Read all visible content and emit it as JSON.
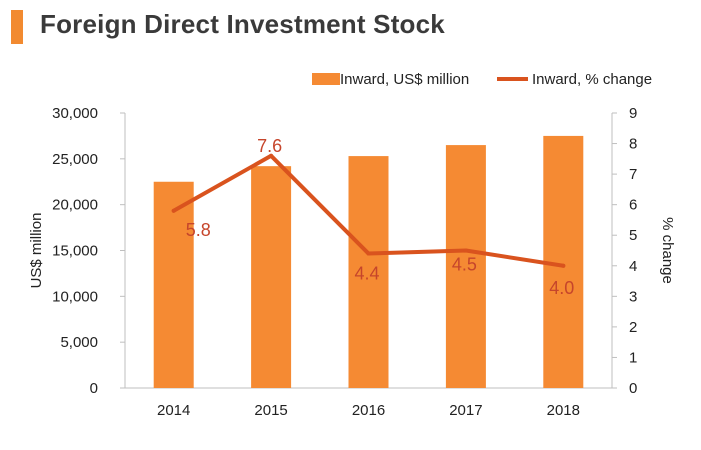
{
  "title": "Foreign Direct Investment Stock",
  "colors": {
    "accent": "#f28a30",
    "bar": "#f58a33",
    "line": "#d9531e",
    "label": "#c6452b",
    "axis": "#bfbfbf"
  },
  "chart_data": {
    "type": "bar",
    "categories": [
      "2014",
      "2015",
      "2016",
      "2017",
      "2018"
    ],
    "series": [
      {
        "name": "Inward, US$ million",
        "type": "bar",
        "axis": "left",
        "values": [
          22500,
          24200,
          25300,
          26500,
          27500
        ]
      },
      {
        "name": "Inward, % change",
        "type": "line",
        "axis": "right",
        "values": [
          5.8,
          7.6,
          4.4,
          4.5,
          4.0
        ],
        "labels": [
          "5.8",
          "7.6",
          "4.4",
          "4.5",
          "4.0"
        ]
      }
    ],
    "ylabel": "US$ million",
    "y2label": "% change",
    "ylim": [
      0,
      30000
    ],
    "y2lim": [
      0,
      9
    ],
    "yticks": [
      "0",
      "5,000",
      "10,000",
      "15,000",
      "20,000",
      "25,000",
      "30,000"
    ],
    "y2ticks": [
      "0",
      "1",
      "2",
      "3",
      "4",
      "5",
      "6",
      "7",
      "8",
      "9"
    ],
    "legend_position": "top-right",
    "grid": false
  }
}
